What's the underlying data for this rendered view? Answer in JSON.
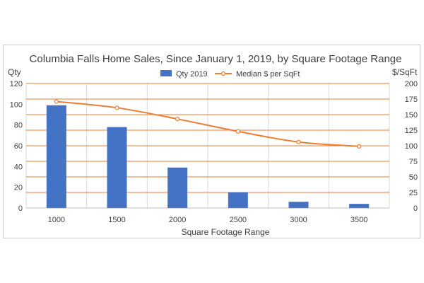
{
  "chart_data": {
    "type": "bar+line",
    "title": "Columbia Falls Home Sales, Since January 1, 2019, by Square Footage Range",
    "xlabel": "Square Footage Range",
    "ylabel_left": "Qty",
    "ylabel_right": "$/SqFt",
    "categories": [
      "1000",
      "1500",
      "2000",
      "2500",
      "3000",
      "3500"
    ],
    "ylim_left": [
      0,
      120
    ],
    "ylim_right": [
      0,
      200
    ],
    "yticks_left": [
      "0",
      "20",
      "40",
      "60",
      "80",
      "100",
      "120"
    ],
    "yticks_right": [
      "0",
      "25",
      "50",
      "75",
      "100",
      "125",
      "150",
      "175",
      "200"
    ],
    "series": [
      {
        "name": "Qty 2019",
        "type": "bar",
        "axis": "left",
        "color": "#4472c4",
        "values": [
          99,
          78,
          39,
          15,
          6,
          4
        ]
      },
      {
        "name": "Median $ per SqFt",
        "type": "line",
        "axis": "right",
        "color": "#ed7d31",
        "values": [
          171,
          161,
          143,
          123,
          106,
          99
        ]
      }
    ],
    "legend_position": "top",
    "gridlines": "horizontal-orange",
    "gridline_color": "#ed7d31"
  }
}
